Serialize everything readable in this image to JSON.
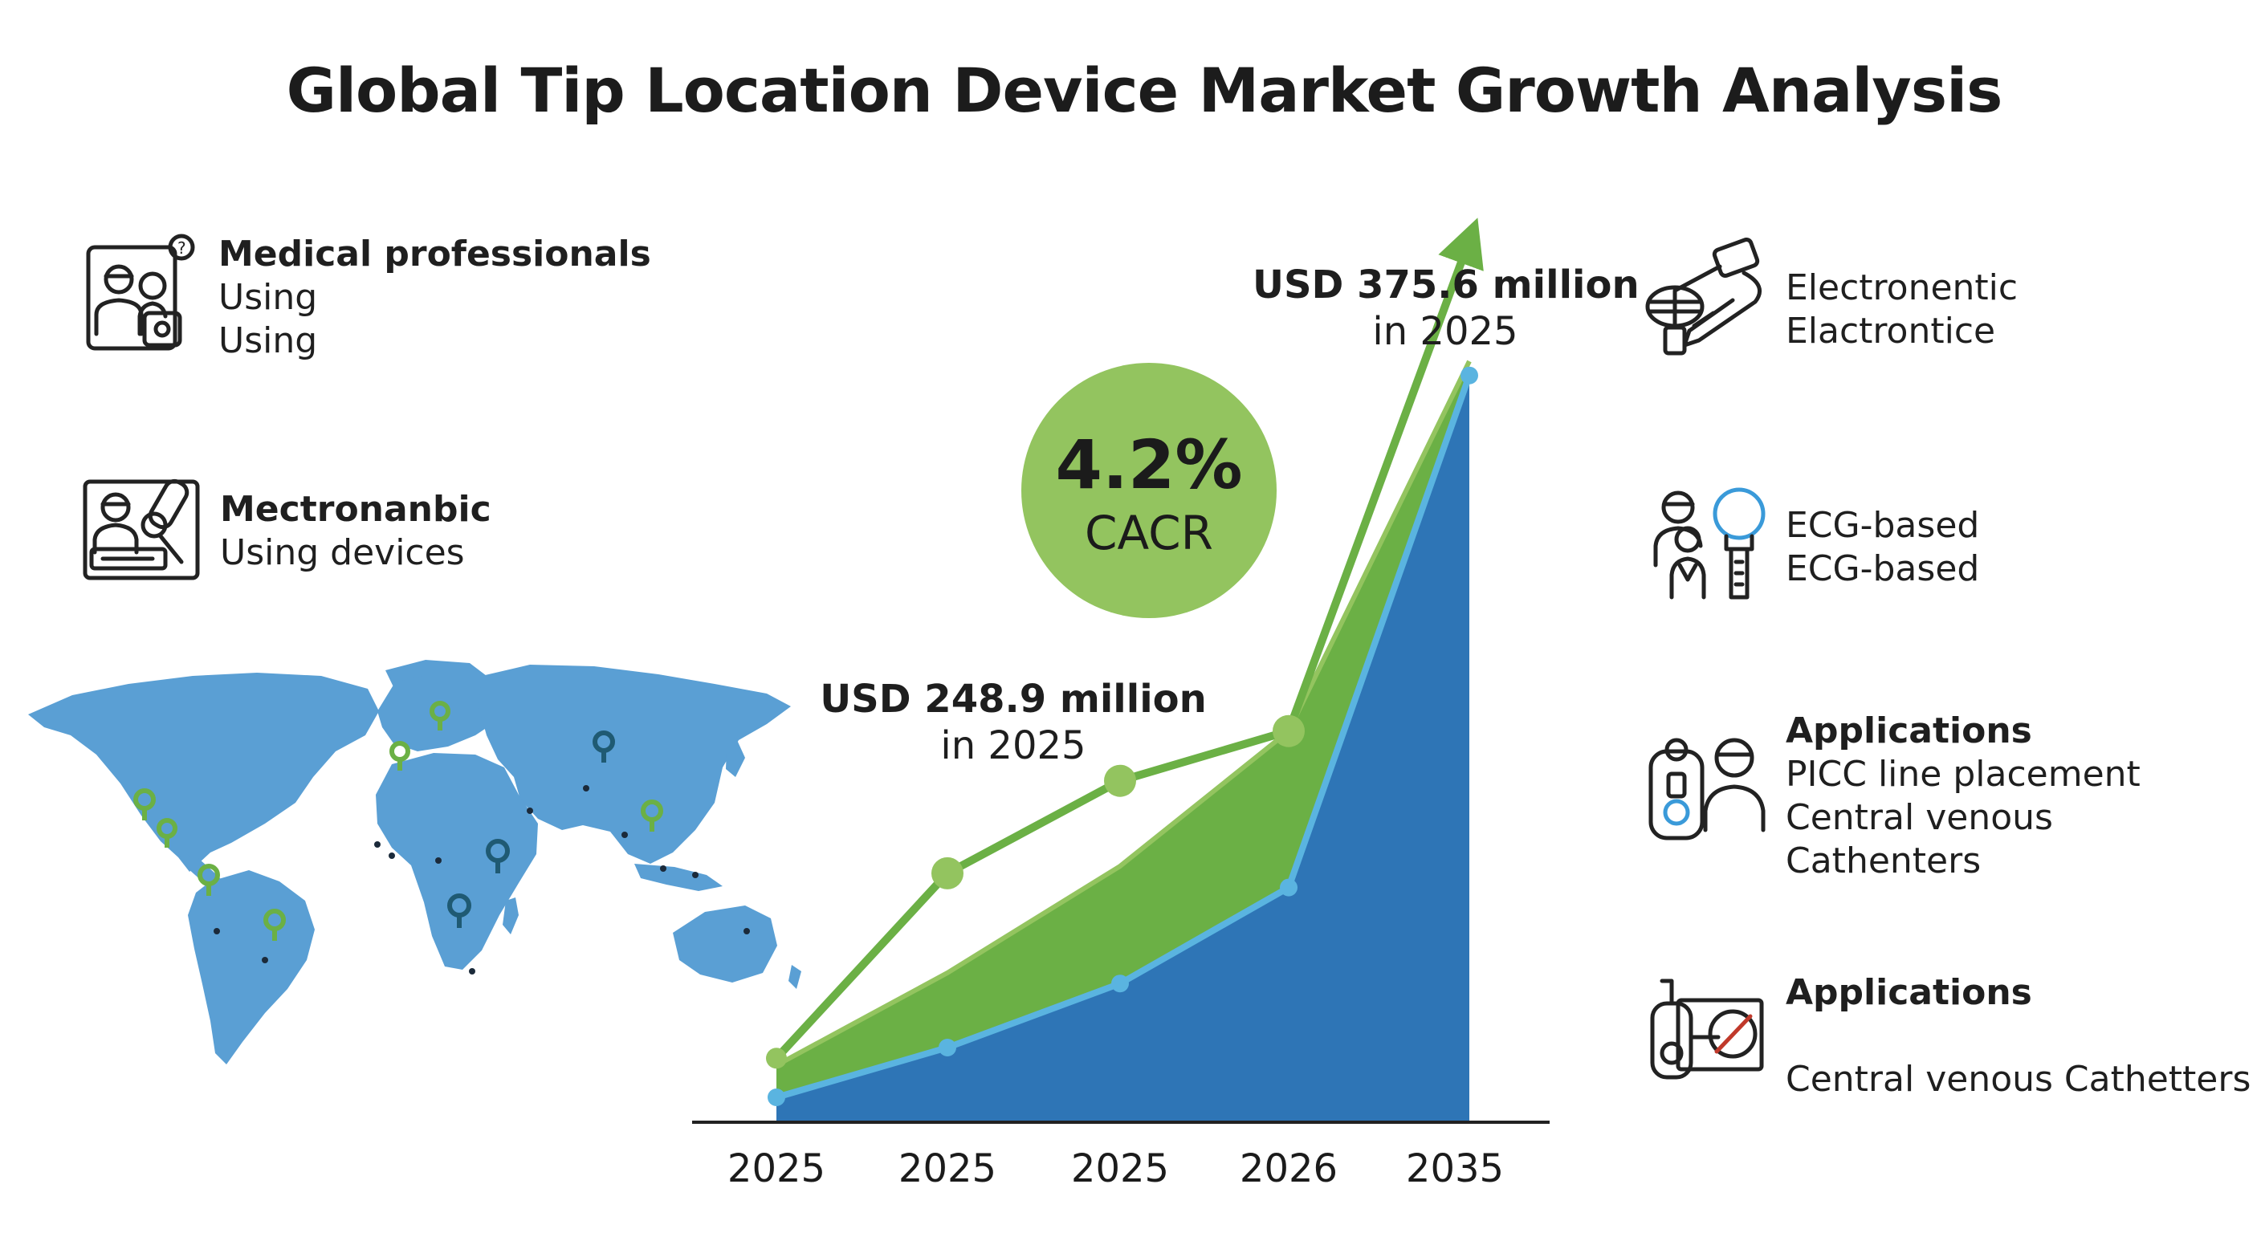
{
  "title": "Global Tip Location Device Market Growth Analysis",
  "left_panel": [
    {
      "icon": "medical-professionals-icon",
      "heading": "Medical professionals",
      "lines": [
        "Using",
        "Using"
      ]
    },
    {
      "icon": "device-technician-icon",
      "heading": "Mectronanbic",
      "lines": [
        "Using devices"
      ]
    }
  ],
  "right_panel": [
    {
      "icon": "electronic-device-icon",
      "heading": "",
      "lines": [
        "Electronentic",
        "Elactrontice"
      ]
    },
    {
      "icon": "ecg-based-icon",
      "heading": "",
      "lines": [
        "ECG-based",
        "ECG-based"
      ]
    },
    {
      "icon": "picc-applications-icon",
      "heading": "Applications",
      "lines": [
        "PICC line placement",
        "Central venous",
        "Cathenters"
      ]
    },
    {
      "icon": "central-venous-icon",
      "heading": "Applications",
      "lines": [
        "Central venous Cathetters"
      ]
    }
  ],
  "cagr": {
    "value": "4.2%",
    "label": "CACR"
  },
  "callouts": {
    "start": {
      "value": "USD 248.9 million",
      "year": "in 2025"
    },
    "end": {
      "value": "USD 375.6 million",
      "year": "in 2025"
    }
  },
  "colors": {
    "blue": "#2e75b6",
    "light_blue": "#5ab4e0",
    "green": "#6bb045",
    "light_green": "#93c45f",
    "map": "#5a9fd4"
  },
  "chart_data": {
    "type": "area",
    "categories": [
      "2025",
      "2025",
      "2025",
      "2026",
      "2035"
    ],
    "title": "Global Tip Location Device Market Growth Analysis",
    "xlabel": "",
    "ylabel": "",
    "ylim": [
      0,
      100
    ],
    "grid": false,
    "series": [
      {
        "style": "area",
        "color": "#2e75b6",
        "values": [
          3.5,
          10.5,
          19.5,
          33,
          105
        ]
      },
      {
        "style": "area",
        "color": "#6bb045",
        "values": [
          8,
          21,
          36,
          55,
          107
        ]
      },
      {
        "style": "line",
        "color": "#6bb045",
        "values": [
          9,
          35,
          48,
          55,
          124
        ]
      }
    ],
    "annotations": [
      "USD 248.9 million in 2025",
      "USD 375.6 million in 2025",
      "4.2% CACR"
    ]
  }
}
